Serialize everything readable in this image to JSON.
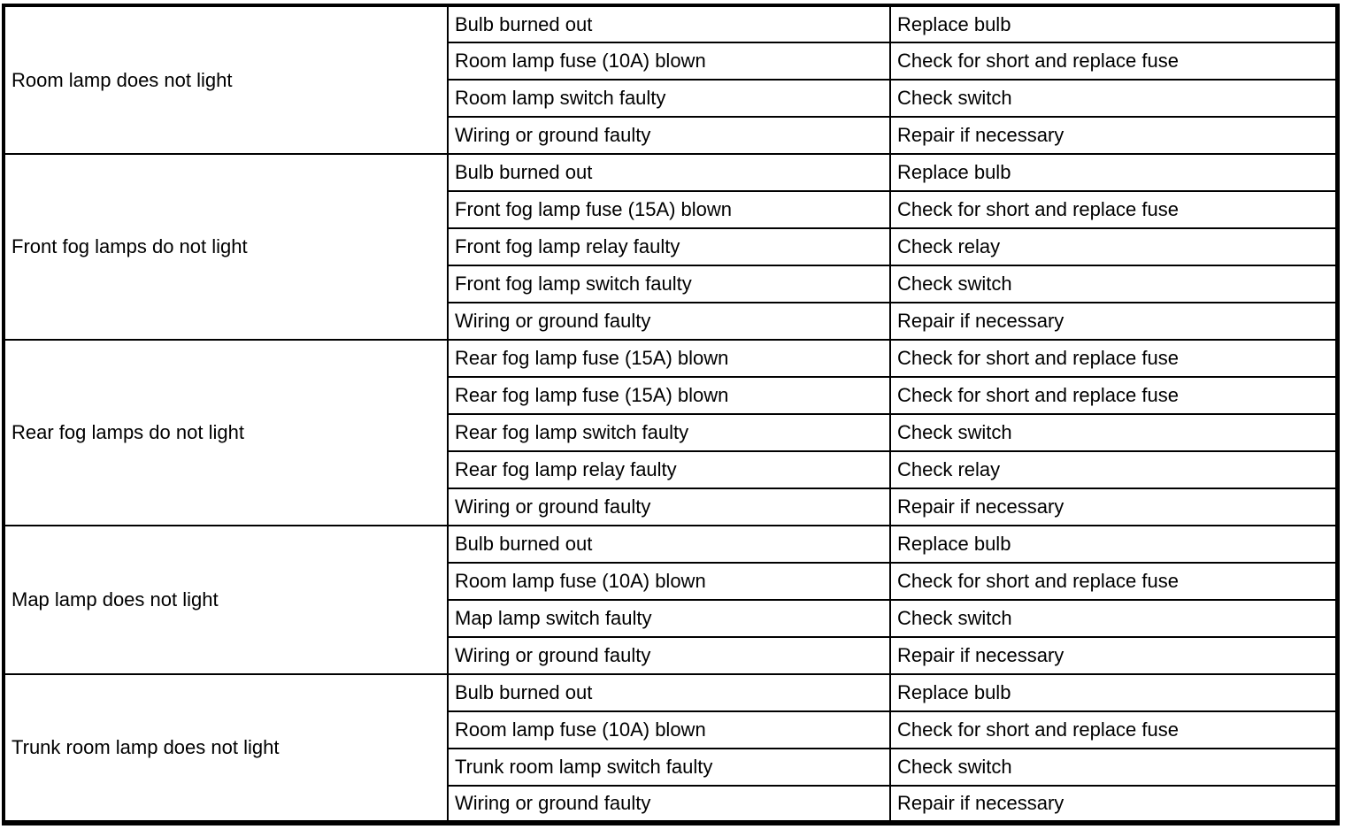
{
  "page": {
    "background_color": "#ffffff",
    "border_color": "#000000",
    "text_color": "#000000"
  },
  "table": {
    "groups": [
      {
        "symptom": "Room lamp does not light",
        "rows": [
          {
            "cause": "Bulb burned out",
            "remedy": "Replace bulb"
          },
          {
            "cause": "Room lamp fuse (10A) blown",
            "remedy": "Check for short and replace fuse"
          },
          {
            "cause": "Room lamp switch faulty",
            "remedy": "Check switch"
          },
          {
            "cause": "Wiring or ground faulty",
            "remedy": "Repair if necessary"
          }
        ]
      },
      {
        "symptom": "Front fog lamps do not light",
        "rows": [
          {
            "cause": "Bulb burned out",
            "remedy": "Replace bulb"
          },
          {
            "cause": "Front fog lamp fuse (15A) blown",
            "remedy": "Check for short and replace fuse"
          },
          {
            "cause": "Front fog lamp relay faulty",
            "remedy": "Check relay"
          },
          {
            "cause": "Front fog lamp switch faulty",
            "remedy": "Check switch"
          },
          {
            "cause": "Wiring or ground faulty",
            "remedy": "Repair if necessary"
          }
        ]
      },
      {
        "symptom": "Rear fog lamps do not light",
        "rows": [
          {
            "cause": "Rear fog lamp fuse (15A) blown",
            "remedy": "Check for short and replace fuse"
          },
          {
            "cause": "Rear fog lamp fuse (15A) blown",
            "remedy": "Check for short and replace fuse"
          },
          {
            "cause": "Rear fog lamp switch faulty",
            "remedy": "Check switch"
          },
          {
            "cause": "Rear fog lamp relay faulty",
            "remedy": "Check relay"
          },
          {
            "cause": "Wiring or ground faulty",
            "remedy": "Repair if necessary"
          }
        ]
      },
      {
        "symptom": "Map lamp does not light",
        "rows": [
          {
            "cause": "Bulb burned out",
            "remedy": "Replace bulb"
          },
          {
            "cause": "Room lamp fuse (10A) blown",
            "remedy": "Check for short and replace fuse"
          },
          {
            "cause": "Map lamp switch faulty",
            "remedy": "Check switch"
          },
          {
            "cause": "Wiring or ground faulty",
            "remedy": "Repair if necessary"
          }
        ]
      },
      {
        "symptom": "Trunk room lamp does not light",
        "rows": [
          {
            "cause": "Bulb burned out",
            "remedy": "Replace bulb"
          },
          {
            "cause": "Room lamp fuse (10A) blown",
            "remedy": "Check for short and replace fuse"
          },
          {
            "cause": "Trunk room lamp switch faulty",
            "remedy": "Check switch"
          },
          {
            "cause": "Wiring or ground faulty",
            "remedy": "Repair if necessary"
          }
        ]
      }
    ]
  }
}
